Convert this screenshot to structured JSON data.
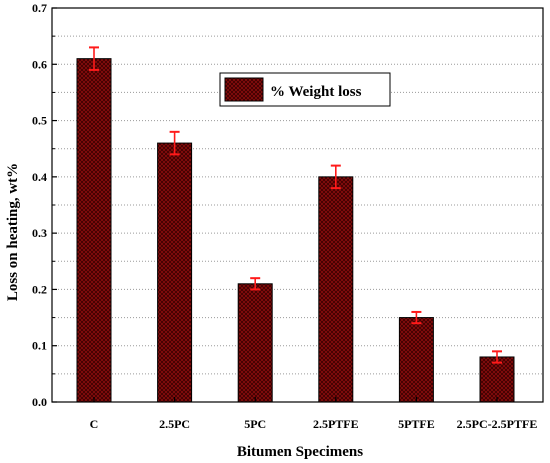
{
  "chart_data": {
    "type": "bar",
    "categories": [
      "C",
      "2.5PC",
      "5PC",
      "2.5PTFE",
      "5PTFE",
      "2.5PC-2.5PTFE"
    ],
    "series": [
      {
        "name": "% Weight loss",
        "values": [
          0.61,
          0.46,
          0.21,
          0.4,
          0.15,
          0.08
        ],
        "error": [
          0.02,
          0.02,
          0.01,
          0.02,
          0.01,
          0.01
        ],
        "color": "#8b0d0d"
      }
    ],
    "error_bar_color": "#ff1a1a",
    "xlabel": "Bitumen Specimens",
    "ylabel": "Loss on heating, wt%",
    "ylim": [
      0,
      0.7
    ],
    "yticks": [
      "0.0",
      "0.1",
      "0.2",
      "0.3",
      "0.4",
      "0.5",
      "0.6",
      "0.7"
    ],
    "grid": "horizontal dotted",
    "legend_position": "top-center"
  }
}
